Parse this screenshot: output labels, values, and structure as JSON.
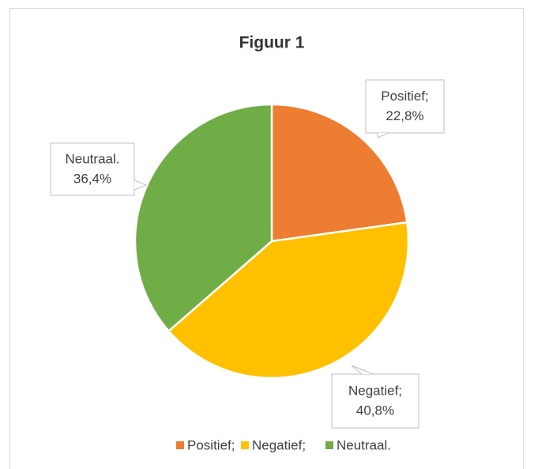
{
  "chart_data": {
    "type": "pie",
    "title": "Figuur 1",
    "categories": [
      "Positief;",
      "Negatief;",
      "Neutraal."
    ],
    "values": [
      22.8,
      40.8,
      36.4
    ],
    "value_labels": [
      "22,8%",
      "40,8%",
      "36,4%"
    ],
    "colors": [
      "#ED7D31",
      "#FFC000",
      "#70AD47"
    ],
    "legend": "bottom"
  }
}
